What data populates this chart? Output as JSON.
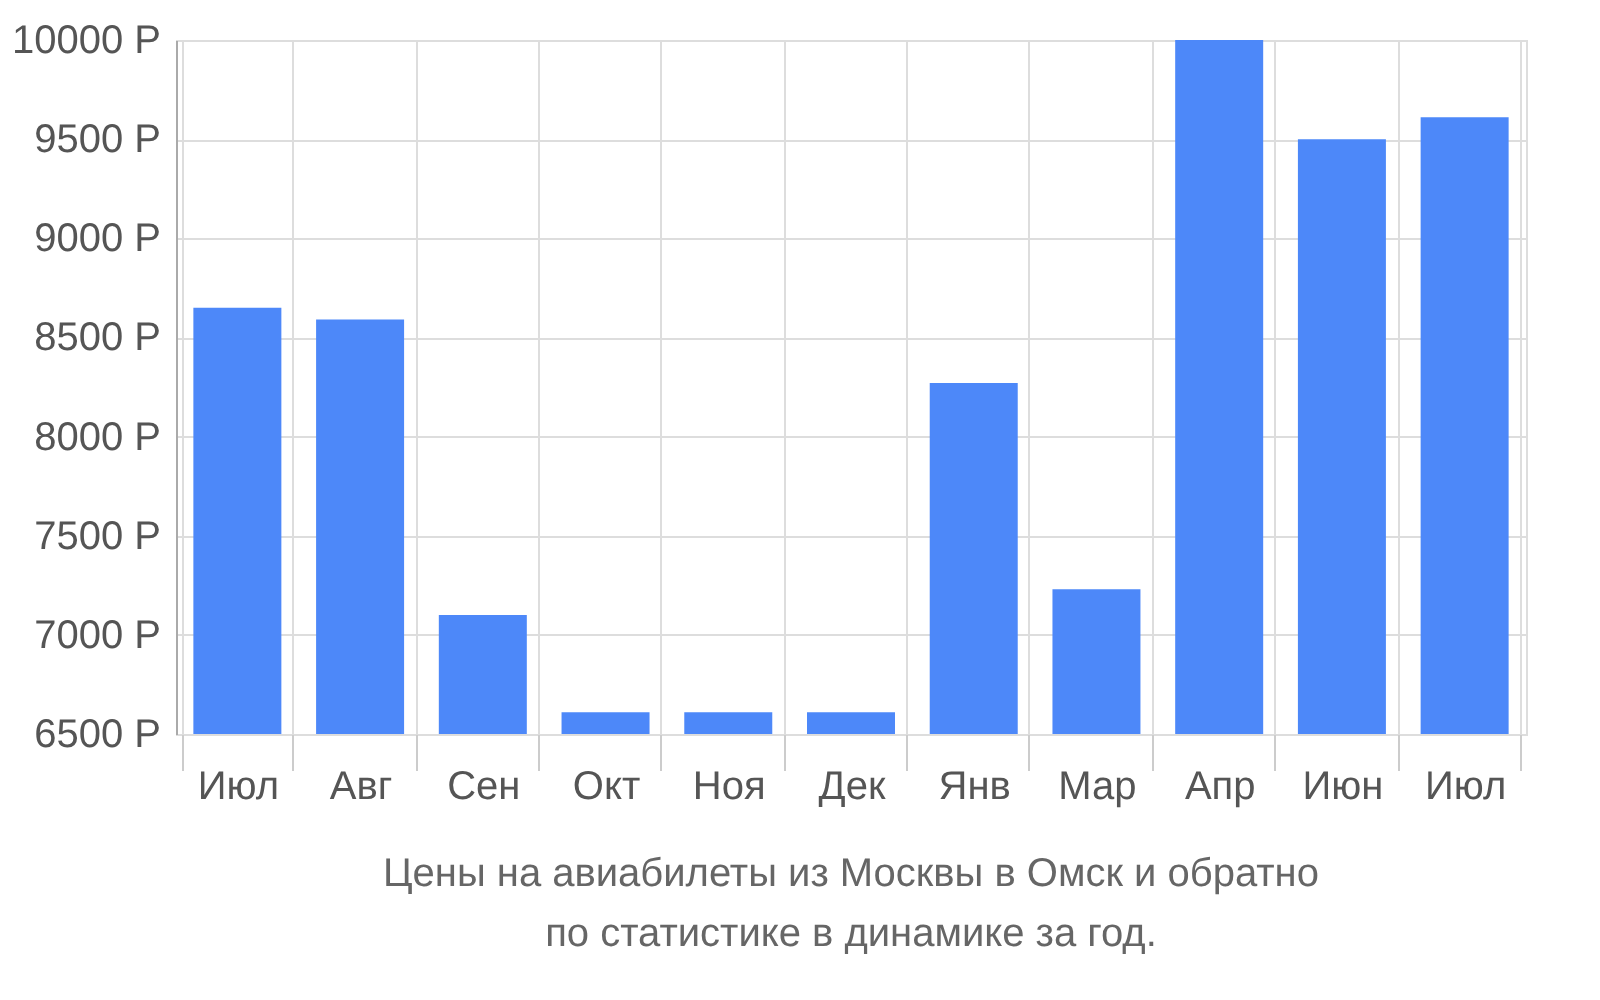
{
  "chart_data": {
    "type": "bar",
    "categories": [
      "Июл",
      "Авг",
      "Сен",
      "Окт",
      "Ноя",
      "Дек",
      "Янв",
      "Мар",
      "Апр",
      "Июн",
      "Июл"
    ],
    "values": [
      8650,
      8590,
      7100,
      6610,
      6610,
      6610,
      8270,
      7230,
      10000,
      9500,
      9610
    ],
    "color": "#4d88f9",
    "ylim": [
      6500,
      10000
    ],
    "yticks": [
      {
        "value": 6500,
        "label": "6500 Р"
      },
      {
        "value": 7000,
        "label": "7000 Р"
      },
      {
        "value": 7500,
        "label": "7500 Р"
      },
      {
        "value": 8000,
        "label": "8000 Р"
      },
      {
        "value": 8500,
        "label": "8500 Р"
      },
      {
        "value": 9000,
        "label": "9000 Р"
      },
      {
        "value": 9500,
        "label": "9500 Р"
      },
      {
        "value": 10000,
        "label": "10000 Р"
      }
    ],
    "grid": true,
    "annotations": [
      "Цены на авиабилеты из Москвы в Омск и обратно",
      "по статистике в динамике за год."
    ]
  }
}
